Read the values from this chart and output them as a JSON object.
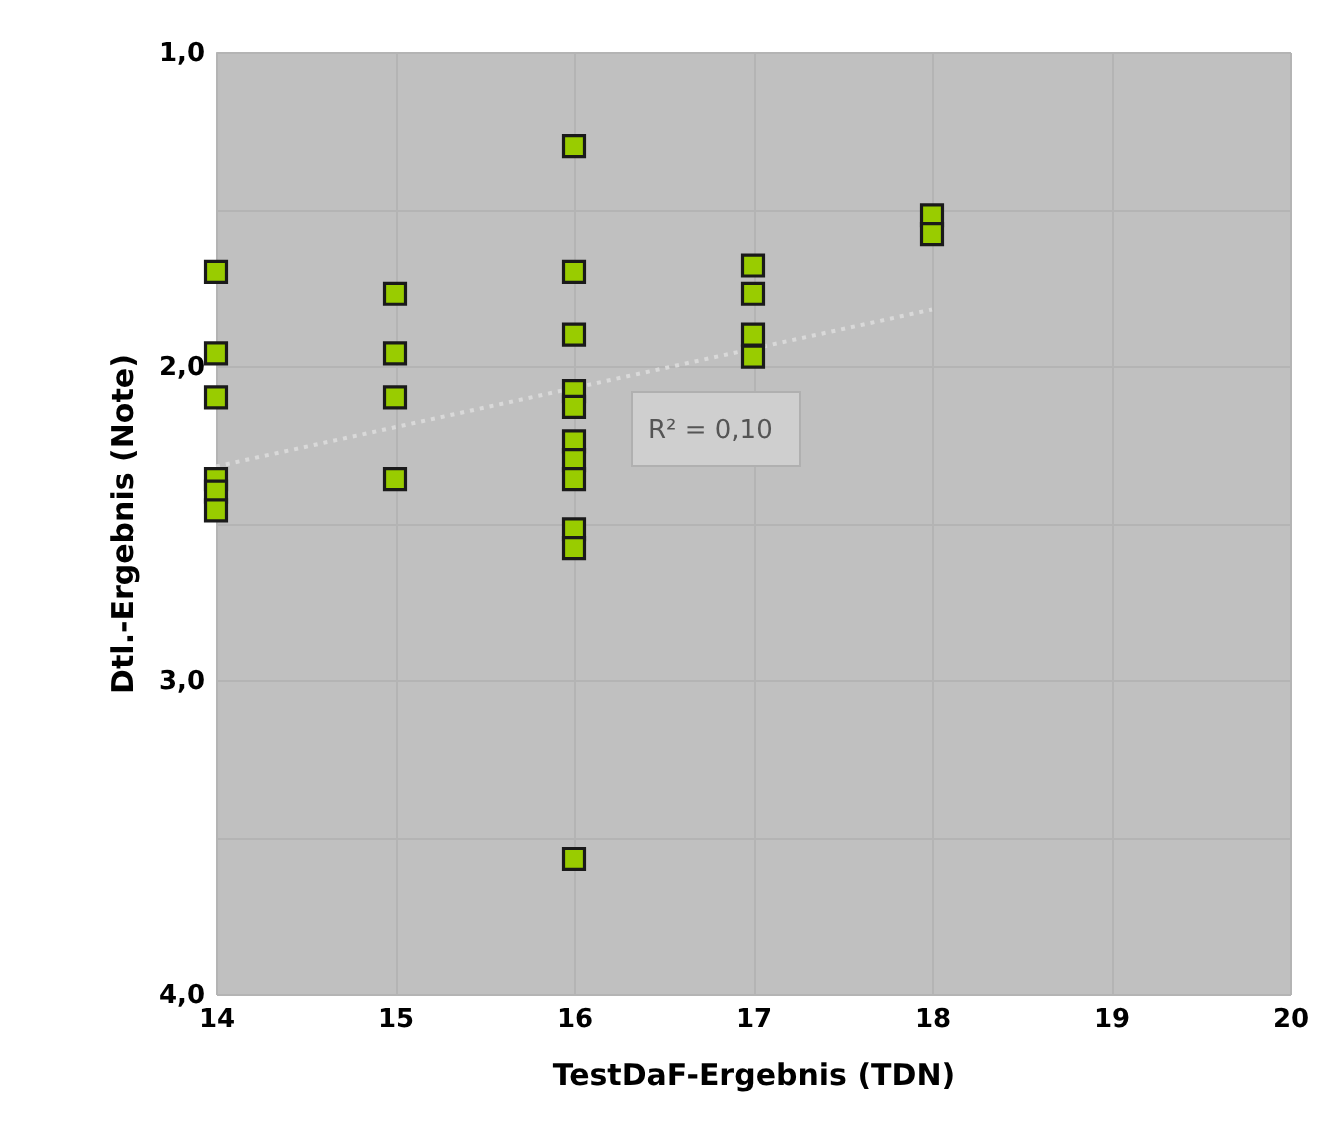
{
  "chart_data": {
    "type": "scatter",
    "xlabel": "TestDaF-Ergebnis (TDN)",
    "ylabel": "Dtl.-Ergebnis (Note)",
    "xlim": [
      14,
      20
    ],
    "xticks": [
      14,
      15,
      16,
      17,
      18,
      19,
      20
    ],
    "ylim": [
      4,
      1
    ],
    "yticks": [
      {
        "value": 1,
        "label": "1,0"
      },
      {
        "value": 1.5,
        "label": null
      },
      {
        "value": 2,
        "label": "2,0"
      },
      {
        "value": 2.5,
        "label": null
      },
      {
        "value": 3,
        "label": "3,0"
      },
      {
        "value": 3.5,
        "label": null
      },
      {
        "value": 4,
        "label": "4,0"
      }
    ],
    "grid": true,
    "annotations": [
      "R² = 0,10"
    ],
    "series": [
      {
        "marker": "square",
        "color": "#99cc00",
        "x": [
          14,
          14,
          14,
          14,
          14,
          14,
          15,
          15,
          15,
          15,
          16,
          16,
          16,
          16,
          16,
          16,
          16,
          16,
          16,
          16,
          16,
          17,
          17,
          17,
          17,
          18,
          18
        ],
        "values": [
          1.7,
          1.96,
          2.1,
          2.36,
          2.4,
          2.46,
          1.77,
          1.96,
          2.1,
          2.36,
          1.3,
          1.7,
          1.9,
          2.08,
          2.13,
          2.24,
          2.3,
          2.36,
          2.52,
          2.58,
          3.57,
          1.68,
          1.77,
          1.9,
          1.97,
          1.52,
          1.58
        ]
      },
      {
        "type": "line",
        "color": "#d9d9d9",
        "line_style": "dotted",
        "x": [
          14,
          18
        ],
        "values": [
          2.32,
          1.82
        ]
      }
    ]
  }
}
